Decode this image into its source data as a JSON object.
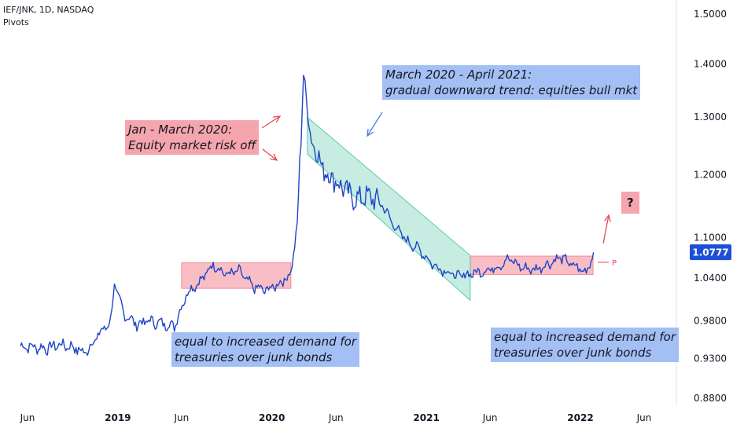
{
  "header": {
    "symbol": "IEF/JNK, 1D, NASDAQ",
    "indicator": "Pivots"
  },
  "annotations": {
    "risk_off": [
      "Jan - March 2020:",
      "Equity market risk off"
    ],
    "bull": [
      "March 2020 - April 2021:",
      "gradual downward trend: equities bull mkt"
    ],
    "demand_left": [
      "equal to increased demand for",
      "treasuries over junk bonds"
    ],
    "demand_right": [
      "equal to increased demand for",
      "treasuries over junk bonds"
    ],
    "question": "?"
  },
  "colors": {
    "line": "#1f45c8",
    "zone_red": "#f7a8b1",
    "zone_red_border": "#f08a95",
    "channel": "#5ec9a8",
    "arrow_red": "#e8485a",
    "arrow_blue": "#4a7ee6",
    "price_tag": "#1e4fd8"
  },
  "chart_data": {
    "type": "line",
    "x": [
      "2018-05-15",
      "2018-06-15",
      "2018-07-15",
      "2018-08-15",
      "2018-09-15",
      "2018-10-15",
      "2018-11-15",
      "2018-12-15",
      "2018-12-24",
      "2019-01-15",
      "2019-02-15",
      "2019-03-15",
      "2019-04-15",
      "2019-05-15",
      "2019-06-15",
      "2019-07-15",
      "2019-08-15",
      "2019-09-15",
      "2019-10-15",
      "2019-11-15",
      "2019-12-15",
      "2020-01-15",
      "2020-02-15",
      "2020-03-01",
      "2020-03-10",
      "2020-03-16",
      "2020-03-23",
      "2020-04-01",
      "2020-04-15",
      "2020-05-01",
      "2020-05-15",
      "2020-06-15",
      "2020-07-15",
      "2020-08-15",
      "2020-09-15",
      "2020-10-15",
      "2020-11-15",
      "2020-12-15",
      "2021-01-15",
      "2021-02-15",
      "2021-03-15",
      "2021-04-15",
      "2021-05-15",
      "2021-06-15",
      "2021-07-15",
      "2021-08-15",
      "2021-09-15",
      "2021-10-15",
      "2021-11-15",
      "2021-12-15",
      "2022-01-15",
      "2022-02-01"
    ],
    "values": [
      0.946,
      0.945,
      0.943,
      0.948,
      0.945,
      0.937,
      0.96,
      0.98,
      1.03,
      0.99,
      0.975,
      0.98,
      0.976,
      0.973,
      1.02,
      1.035,
      1.06,
      1.045,
      1.05,
      1.028,
      1.022,
      1.03,
      1.046,
      1.12,
      1.26,
      1.385,
      1.33,
      1.27,
      1.24,
      1.21,
      1.2,
      1.18,
      1.16,
      1.165,
      1.155,
      1.12,
      1.095,
      1.082,
      1.06,
      1.05,
      1.042,
      1.046,
      1.05,
      1.055,
      1.068,
      1.055,
      1.052,
      1.06,
      1.07,
      1.058,
      1.048,
      1.0777
    ],
    "y_axis": {
      "ticks": [
        "1.5000",
        "1.4000",
        "1.3000",
        "1.2000",
        "1.1000",
        "1.0400",
        "0.9800",
        "0.9300",
        "0.8800"
      ],
      "scale": "log",
      "position": "right"
    },
    "x_axis": {
      "ticks": [
        "Jun",
        "2019",
        "Jun",
        "2020",
        "Jun",
        "2021",
        "Jun",
        "2022",
        "Jun"
      ],
      "bold": [
        "2019",
        "2020",
        "2021",
        "2022"
      ]
    },
    "last_price": "1.0777",
    "pivot_label": "P",
    "zones": [
      {
        "kind": "range",
        "from": "2019-06-01",
        "to": "2020-02-15",
        "low": 1.025,
        "high": 1.062
      },
      {
        "kind": "range",
        "from": "2021-04-15",
        "to": "2022-01-31",
        "low": 1.045,
        "high": 1.072
      }
    ],
    "channel": {
      "from": "2020-03-25",
      "to": "2021-04-15",
      "upper_start": 1.3,
      "upper_end": 1.073,
      "lower_start": 1.235,
      "lower_end": 1.008
    }
  }
}
